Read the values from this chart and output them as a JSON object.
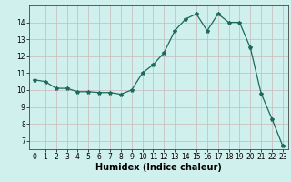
{
  "x": [
    0,
    1,
    2,
    3,
    4,
    5,
    6,
    7,
    8,
    9,
    10,
    11,
    12,
    13,
    14,
    15,
    16,
    17,
    18,
    19,
    20,
    21,
    22,
    23
  ],
  "y": [
    10.6,
    10.5,
    10.1,
    10.1,
    9.9,
    9.9,
    9.85,
    9.85,
    9.75,
    10.0,
    11.0,
    11.5,
    12.2,
    13.5,
    14.2,
    14.5,
    13.5,
    14.5,
    14.0,
    14.0,
    12.5,
    9.8,
    8.3,
    6.7
  ],
  "line_color": "#1a6b5a",
  "marker": "*",
  "marker_size": 3,
  "bg_color": "#cff0ec",
  "grid_color": "#c8b8b8",
  "xlabel": "Humidex (Indice chaleur)",
  "ylim": [
    6.5,
    15.0
  ],
  "xlim": [
    -0.5,
    23.5
  ],
  "yticks": [
    7,
    8,
    9,
    10,
    11,
    12,
    13,
    14
  ],
  "xticks": [
    0,
    1,
    2,
    3,
    4,
    5,
    6,
    7,
    8,
    9,
    10,
    11,
    12,
    13,
    14,
    15,
    16,
    17,
    18,
    19,
    20,
    21,
    22,
    23
  ],
  "tick_fontsize": 5.5,
  "xlabel_fontsize": 7.0
}
